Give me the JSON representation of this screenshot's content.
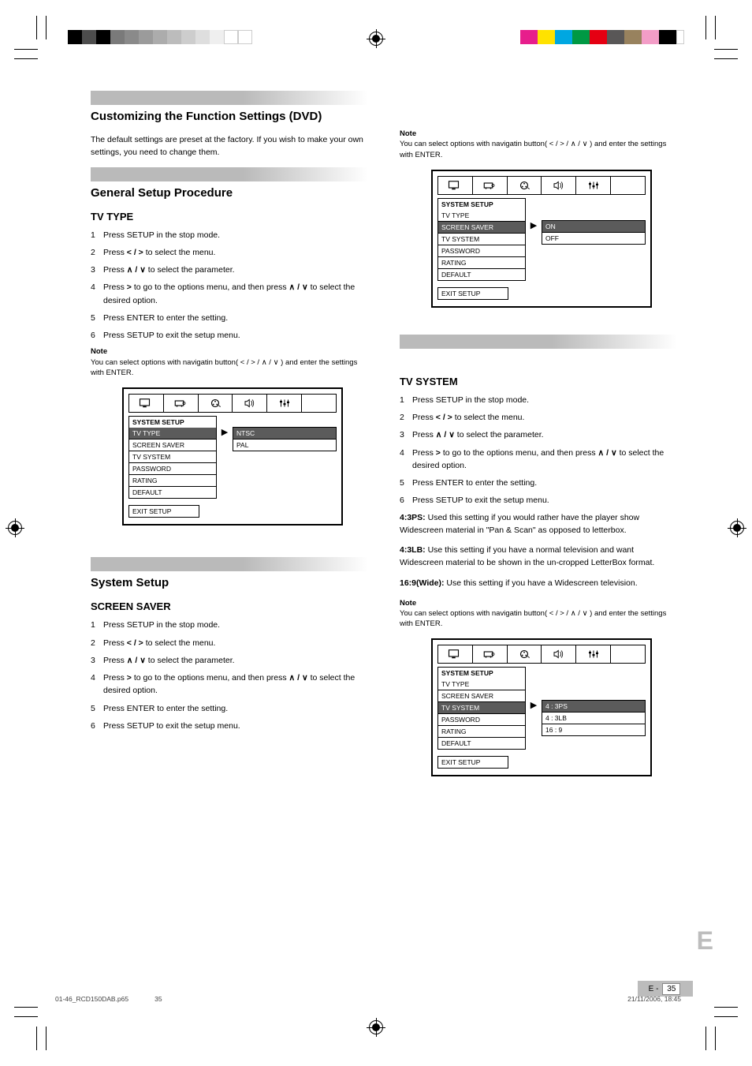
{
  "print_marks": {
    "left_swatches_widths": [
      18,
      18,
      18,
      18,
      18,
      18,
      18,
      18,
      18,
      18,
      18,
      18,
      18
    ],
    "left_swatches_colors": [
      "#000000",
      "#4d4d4d",
      "#000000",
      "#7a7a7a",
      "#8a8a8a",
      "#9b9b9b",
      "#acacac",
      "#bcbcbc",
      "#cdcdcd",
      "#dedede",
      "#efefef",
      "#ffffff",
      "#ffffff"
    ],
    "right_swatches_colors": [
      "#e71e8c",
      "#ffe200",
      "#00a7e1",
      "#009944",
      "#e50012",
      "#595757",
      "#98825e",
      "#f39dc7",
      "#000000",
      "#ffffff"
    ],
    "right_swatches_widths": [
      22,
      22,
      22,
      22,
      22,
      22,
      22,
      22,
      22,
      10
    ]
  },
  "nav_symbols": {
    "left": "<",
    "right": ">",
    "up": "∧",
    "down": "∨"
  },
  "left": {
    "bar1": true,
    "title1": "Customizing the Function Settings (DVD)",
    "intro": "The default settings are preset at the factory. If you wish to make your own settings, you need to change them.",
    "bar2": true,
    "title2": "General Setup Procedure",
    "h2_1": "TV TYPE",
    "steps_tv_type": [
      {
        "n": "1",
        "t": "Press SETUP in the stop mode."
      },
      {
        "n": "2",
        "t": "Press ",
        "sym_pair": "lr",
        "t2": " to select the menu."
      },
      {
        "n": "3",
        "t": "Press ",
        "sym_pair": "ud",
        "t2": " to select the parameter."
      },
      {
        "n": "4",
        "t": "Press ",
        "sym_single": "right",
        "t2": " to go to the options menu, and then press ",
        "sym_pair2": "ud",
        "t3": " to select the desired option."
      },
      {
        "n": "5",
        "t": "Press ENTER to enter the setting."
      },
      {
        "n": "6",
        "t": "Press SETUP to exit the setup menu."
      }
    ],
    "note_tv_type": "You can select options with navigatin button( < / > / ∧ / ∨ ) and enter the settings with ENTER.",
    "note_label": "Note",
    "osd_tv_type": {
      "header": "SYSTEM SETUP",
      "items": [
        "TV TYPE",
        "SCREEN SAVER",
        "TV SYSTEM",
        "PASSWORD",
        "RATING",
        "DEFAULT"
      ],
      "selected_item": "TV TYPE",
      "options": [
        "NTSC",
        "PAL"
      ],
      "selected_option": "NTSC",
      "exit": "EXIT SETUP"
    },
    "bar3": true,
    "title3": "System Setup",
    "h2_2": "SCREEN SAVER",
    "steps_screen_saver": [
      {
        "n": "1",
        "t": "Press SETUP in the stop mode."
      },
      {
        "n": "2",
        "t": "Press ",
        "sym_pair": "lr",
        "t2": " to select the menu."
      },
      {
        "n": "3",
        "t": "Press ",
        "sym_pair": "ud",
        "t2": " to select the parameter."
      },
      {
        "n": "4",
        "t": "Press ",
        "sym_single": "right",
        "t2": " to go to the options menu, and then press ",
        "sym_pair2": "ud",
        "t3": " to select the desired option."
      },
      {
        "n": "5",
        "t": "Press ENTER to enter the setting."
      },
      {
        "n": "6",
        "t": "Press SETUP to exit the setup menu."
      }
    ]
  },
  "right": {
    "note_top_label": "Note",
    "note_top": "You can select options with navigatin button( < / > / ∧ / ∨ ) and enter the settings with ENTER.",
    "osd_screen_saver": {
      "header": "SYSTEM SETUP",
      "items": [
        "TV TYPE",
        "SCREEN SAVER",
        "TV SYSTEM",
        "PASSWORD",
        "RATING",
        "DEFAULT"
      ],
      "selected_item": "SCREEN SAVER",
      "options": [
        "ON",
        "OFF"
      ],
      "selected_option": "ON",
      "exit": "EXIT SETUP"
    },
    "bar_r1": true,
    "blank_title_1": " ",
    "h2_r1": "TV SYSTEM",
    "steps_tv_system": [
      {
        "n": "1",
        "t": "Press SETUP in the stop mode."
      },
      {
        "n": "2",
        "t": "Press ",
        "sym_pair": "lr",
        "t2": " to select the menu."
      },
      {
        "n": "3",
        "t": "Press ",
        "sym_pair": "ud",
        "t2": " to select the parameter."
      },
      {
        "n": "4",
        "t": "Press ",
        "sym_single": "right",
        "t2": " to go to the options menu, and then press ",
        "sym_pair2": "ud",
        "t3": " to select the desired option."
      },
      {
        "n": "5",
        "t": "Press ENTER to enter the setting."
      },
      {
        "n": "6",
        "t": "Press SETUP to exit the setup menu."
      }
    ],
    "opt_4_3ps": {
      "label": "4:3PS:",
      "text": "Used this setting if you would rather have the player show Widescreen material in \"Pan & Scan\" as opposed to letterbox."
    },
    "opt_4_3lb": {
      "label": "4:3LB:",
      "text": "Use this setting if you have a normal television and want Widescreen material to be shown in the un-cropped LetterBox format."
    },
    "opt_16_9": {
      "label": "16:9(Wide):",
      "text": "Use this setting if you have a Widescreen television."
    },
    "note_r_label": "Note",
    "note_r": "You can select options with navigatin button( < / > / ∧ / ∨ ) and enter the settings with ENTER.",
    "osd_tv_system": {
      "header": "SYSTEM SETUP",
      "items": [
        "TV TYPE",
        "SCREEN SAVER",
        "TV SYSTEM",
        "PASSWORD",
        "RATING",
        "DEFAULT"
      ],
      "selected_item": "TV SYSTEM",
      "options": [
        "4 : 3PS",
        "4 : 3LB",
        "16 : 9"
      ],
      "selected_option": "4 : 3PS",
      "exit": "EXIT SETUP"
    }
  },
  "footer": {
    "page_total_left": "E",
    "page_cur": "35",
    "file_stamp_left": "01-46_RCD150DAB.p65",
    "file_stamp_pagenum": "35",
    "file_stamp_right": "21/11/2006, 18:45",
    "big_letter": "E"
  },
  "tab_icons": {
    "tv": "tv",
    "projector": "projector",
    "spool": "spool",
    "speaker": "speaker",
    "sliders": "sliders"
  }
}
